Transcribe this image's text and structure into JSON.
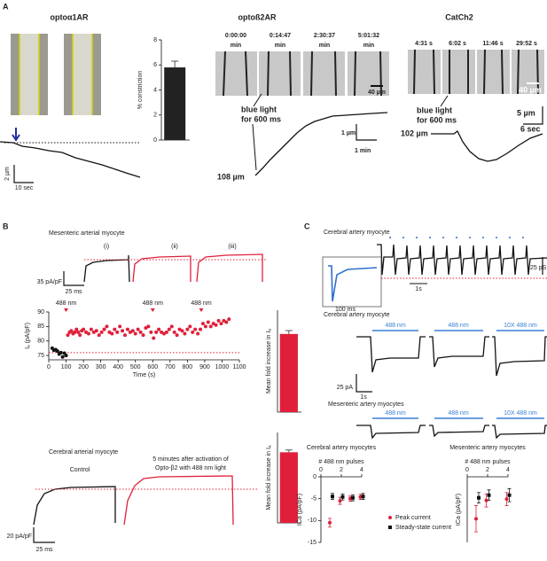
{
  "panel_letters": [
    "A",
    "B",
    "C"
  ],
  "panel_a": {
    "alpha_title": "optoα1AR",
    "alpha_scale_y": "2 µm",
    "alpha_scale_x": "10 sec",
    "beta_title": "optoß2AR",
    "beta_times": [
      "0:00:00",
      "0:14:47",
      "2:30:37",
      "5:01:32"
    ],
    "time_unit": "min",
    "scale_image": "40 µm",
    "light_lines": [
      "blue light",
      "for 600 ms"
    ],
    "beta_scale_y": "1 µm",
    "beta_scale_x": "1 min",
    "beta_diameter": "108 µm",
    "catch_title": "CatCh2",
    "catch_times": [
      "4:31 s",
      "6:02 s",
      "11:46 s",
      "29:52 s"
    ],
    "catch_scale_y": "5 µm",
    "catch_scale_x": "6 sec",
    "catch_diameter": "102 µm"
  },
  "panel_b": {
    "top_title": "Mesenteric arterial myocyte",
    "phases": [
      "(i)",
      "(ii)",
      "(iii)"
    ],
    "top_scale_y": "35 pA/pF",
    "top_scale_x": "25 ms",
    "bottom_title": "Cerebral arterial myocyte",
    "control": "Control",
    "after_lines": [
      "5 minutes after activation of",
      "Opto-β2 with 488 nm light"
    ],
    "bottom_scale_y": "20 pA/pF",
    "bottom_scale_x": "25 ms"
  },
  "panel_c": {
    "top_title": "Cerebral artery myocyte",
    "train_scale_y": "25 pS",
    "train_scale_x": "1s",
    "inset_scale": "100 ms",
    "cerebral_title": "Cerebral artery myocyte",
    "light_labels": [
      "488 nm",
      "488 nm",
      "10X 488 nm"
    ],
    "step_scale_y": "25 pA",
    "step_scale_x": "1s",
    "mesenteric_title": "Mesenteric artery myocytes"
  },
  "chart_data": [
    {
      "type": "bar",
      "ylabel": "% constriction",
      "values": [
        5.8
      ],
      "errors": [
        0.5
      ],
      "color": "#222222",
      "ylim": [
        0,
        8
      ],
      "yticks": [
        0,
        2,
        4,
        6,
        8
      ]
    },
    {
      "type": "scatter",
      "xlabel": "Time (s)",
      "ylabel": "Iₐ (pA/pF)",
      "xlim": [
        0,
        1100
      ],
      "xticks": [
        0,
        100,
        200,
        300,
        400,
        500,
        600,
        700,
        800,
        900,
        1000,
        1100
      ],
      "ylim": [
        73.5,
        90
      ],
      "yticks": [
        75,
        80,
        85,
        90
      ],
      "events": [
        {
          "label": "488 nm",
          "x": 100
        },
        {
          "label": "488 nm",
          "x": 600
        },
        {
          "label": "488 nm",
          "x": 880
        }
      ],
      "event_color": "#e0203a",
      "ref_line": 76,
      "ref_color": "#e0203a",
      "series": [
        {
          "color": "#111111",
          "x": [
            20,
            30,
            40,
            50,
            60,
            70,
            80,
            90,
            100
          ],
          "values": [
            77.5,
            76.8,
            77,
            76.5,
            75.5,
            76,
            74.5,
            75.8,
            75
          ]
        },
        {
          "color": "#e0203a",
          "x": [
            110,
            120,
            130,
            140,
            150,
            160,
            170,
            180,
            190,
            200,
            215,
            230,
            245,
            260,
            275,
            290,
            305,
            320,
            335,
            350,
            365,
            380,
            395,
            410,
            425,
            440,
            455,
            470,
            485,
            500,
            515,
            530,
            545,
            560,
            575,
            590,
            605,
            620,
            635,
            650,
            665,
            680,
            695,
            710,
            725,
            740,
            755,
            770,
            785,
            800,
            815,
            830,
            845,
            860,
            875,
            890,
            905,
            920,
            935,
            950,
            965,
            980,
            995,
            1010,
            1025,
            1040
          ],
          "values": [
            82,
            83,
            83.5,
            82.5,
            83,
            84,
            83,
            82,
            83.5,
            84,
            83,
            82.5,
            84,
            83,
            83.5,
            82,
            83,
            84,
            85,
            83,
            82.5,
            84,
            83,
            85,
            83.5,
            82,
            84,
            83,
            83.5,
            82.5,
            84,
            83,
            82,
            84.5,
            85,
            83,
            81,
            83,
            84,
            83,
            82.5,
            83,
            84,
            85,
            83,
            82,
            84,
            83.5,
            82.5,
            84,
            85,
            83,
            84,
            82.5,
            84,
            86,
            85,
            86.5,
            85,
            86,
            85.5,
            87,
            86,
            87,
            86.5,
            87.5
          ]
        }
      ]
    },
    {
      "type": "bar",
      "ylabel": "Mean fold increase in Iₐ",
      "values": [
        1.15
      ],
      "errors": [
        0.05
      ],
      "color": "#e0203a",
      "ylim": [
        0,
        1.5
      ]
    },
    {
      "type": "bar",
      "ylabel": "Mean fold increase in Iₐ",
      "values": [
        1.25
      ],
      "errors": [
        0.04
      ],
      "color": "#e0203a",
      "ylim": [
        0,
        1.6
      ]
    },
    {
      "type": "scatter",
      "title": "Cerebral artery myocytes",
      "xlabel": "# 488 nm pulses",
      "ylabel": "ICa (pA/pF)",
      "xaxis_position": "top",
      "xlim": [
        0,
        4
      ],
      "xticks": [
        0,
        2,
        4
      ],
      "ylim": [
        -15,
        0
      ],
      "yticks": [
        -15,
        -10,
        -5,
        0
      ],
      "legend": "bottom",
      "series": [
        {
          "name": "Peak current",
          "color": "#e0203a",
          "x": [
            1,
            2,
            3,
            4
          ],
          "values": [
            -10.5,
            -5.5,
            -5,
            -4.6
          ],
          "errors": [
            1,
            0.8,
            0.6,
            0.6
          ]
        },
        {
          "name": "Steady-state current",
          "color": "#111111",
          "x": [
            1,
            2,
            3,
            4
          ],
          "values": [
            -4.5,
            -4.6,
            -4.8,
            -4.5
          ],
          "errors": [
            0.7,
            0.7,
            0.7,
            0.7
          ]
        }
      ]
    },
    {
      "type": "scatter",
      "title": "Mesenteric artery myocytes",
      "xlabel": "# 488 nm pulses",
      "ylabel": "ICa (pA/pF)",
      "xaxis_position": "top",
      "xlim": [
        0,
        4
      ],
      "xticks": [
        0,
        2,
        4
      ],
      "ylim": [
        -5,
        0
      ],
      "series": [
        {
          "color": "#e0203a",
          "x": [
            1,
            2,
            4
          ],
          "values": [
            -3.2,
            -1.8,
            -1.7
          ],
          "errors": [
            1,
            0.5,
            0.5
          ]
        },
        {
          "color": "#111111",
          "x": [
            1,
            2,
            4
          ],
          "values": [
            -1.6,
            -1.4,
            -1.4
          ],
          "errors": [
            0.4,
            0.4,
            0.5
          ]
        }
      ]
    }
  ]
}
